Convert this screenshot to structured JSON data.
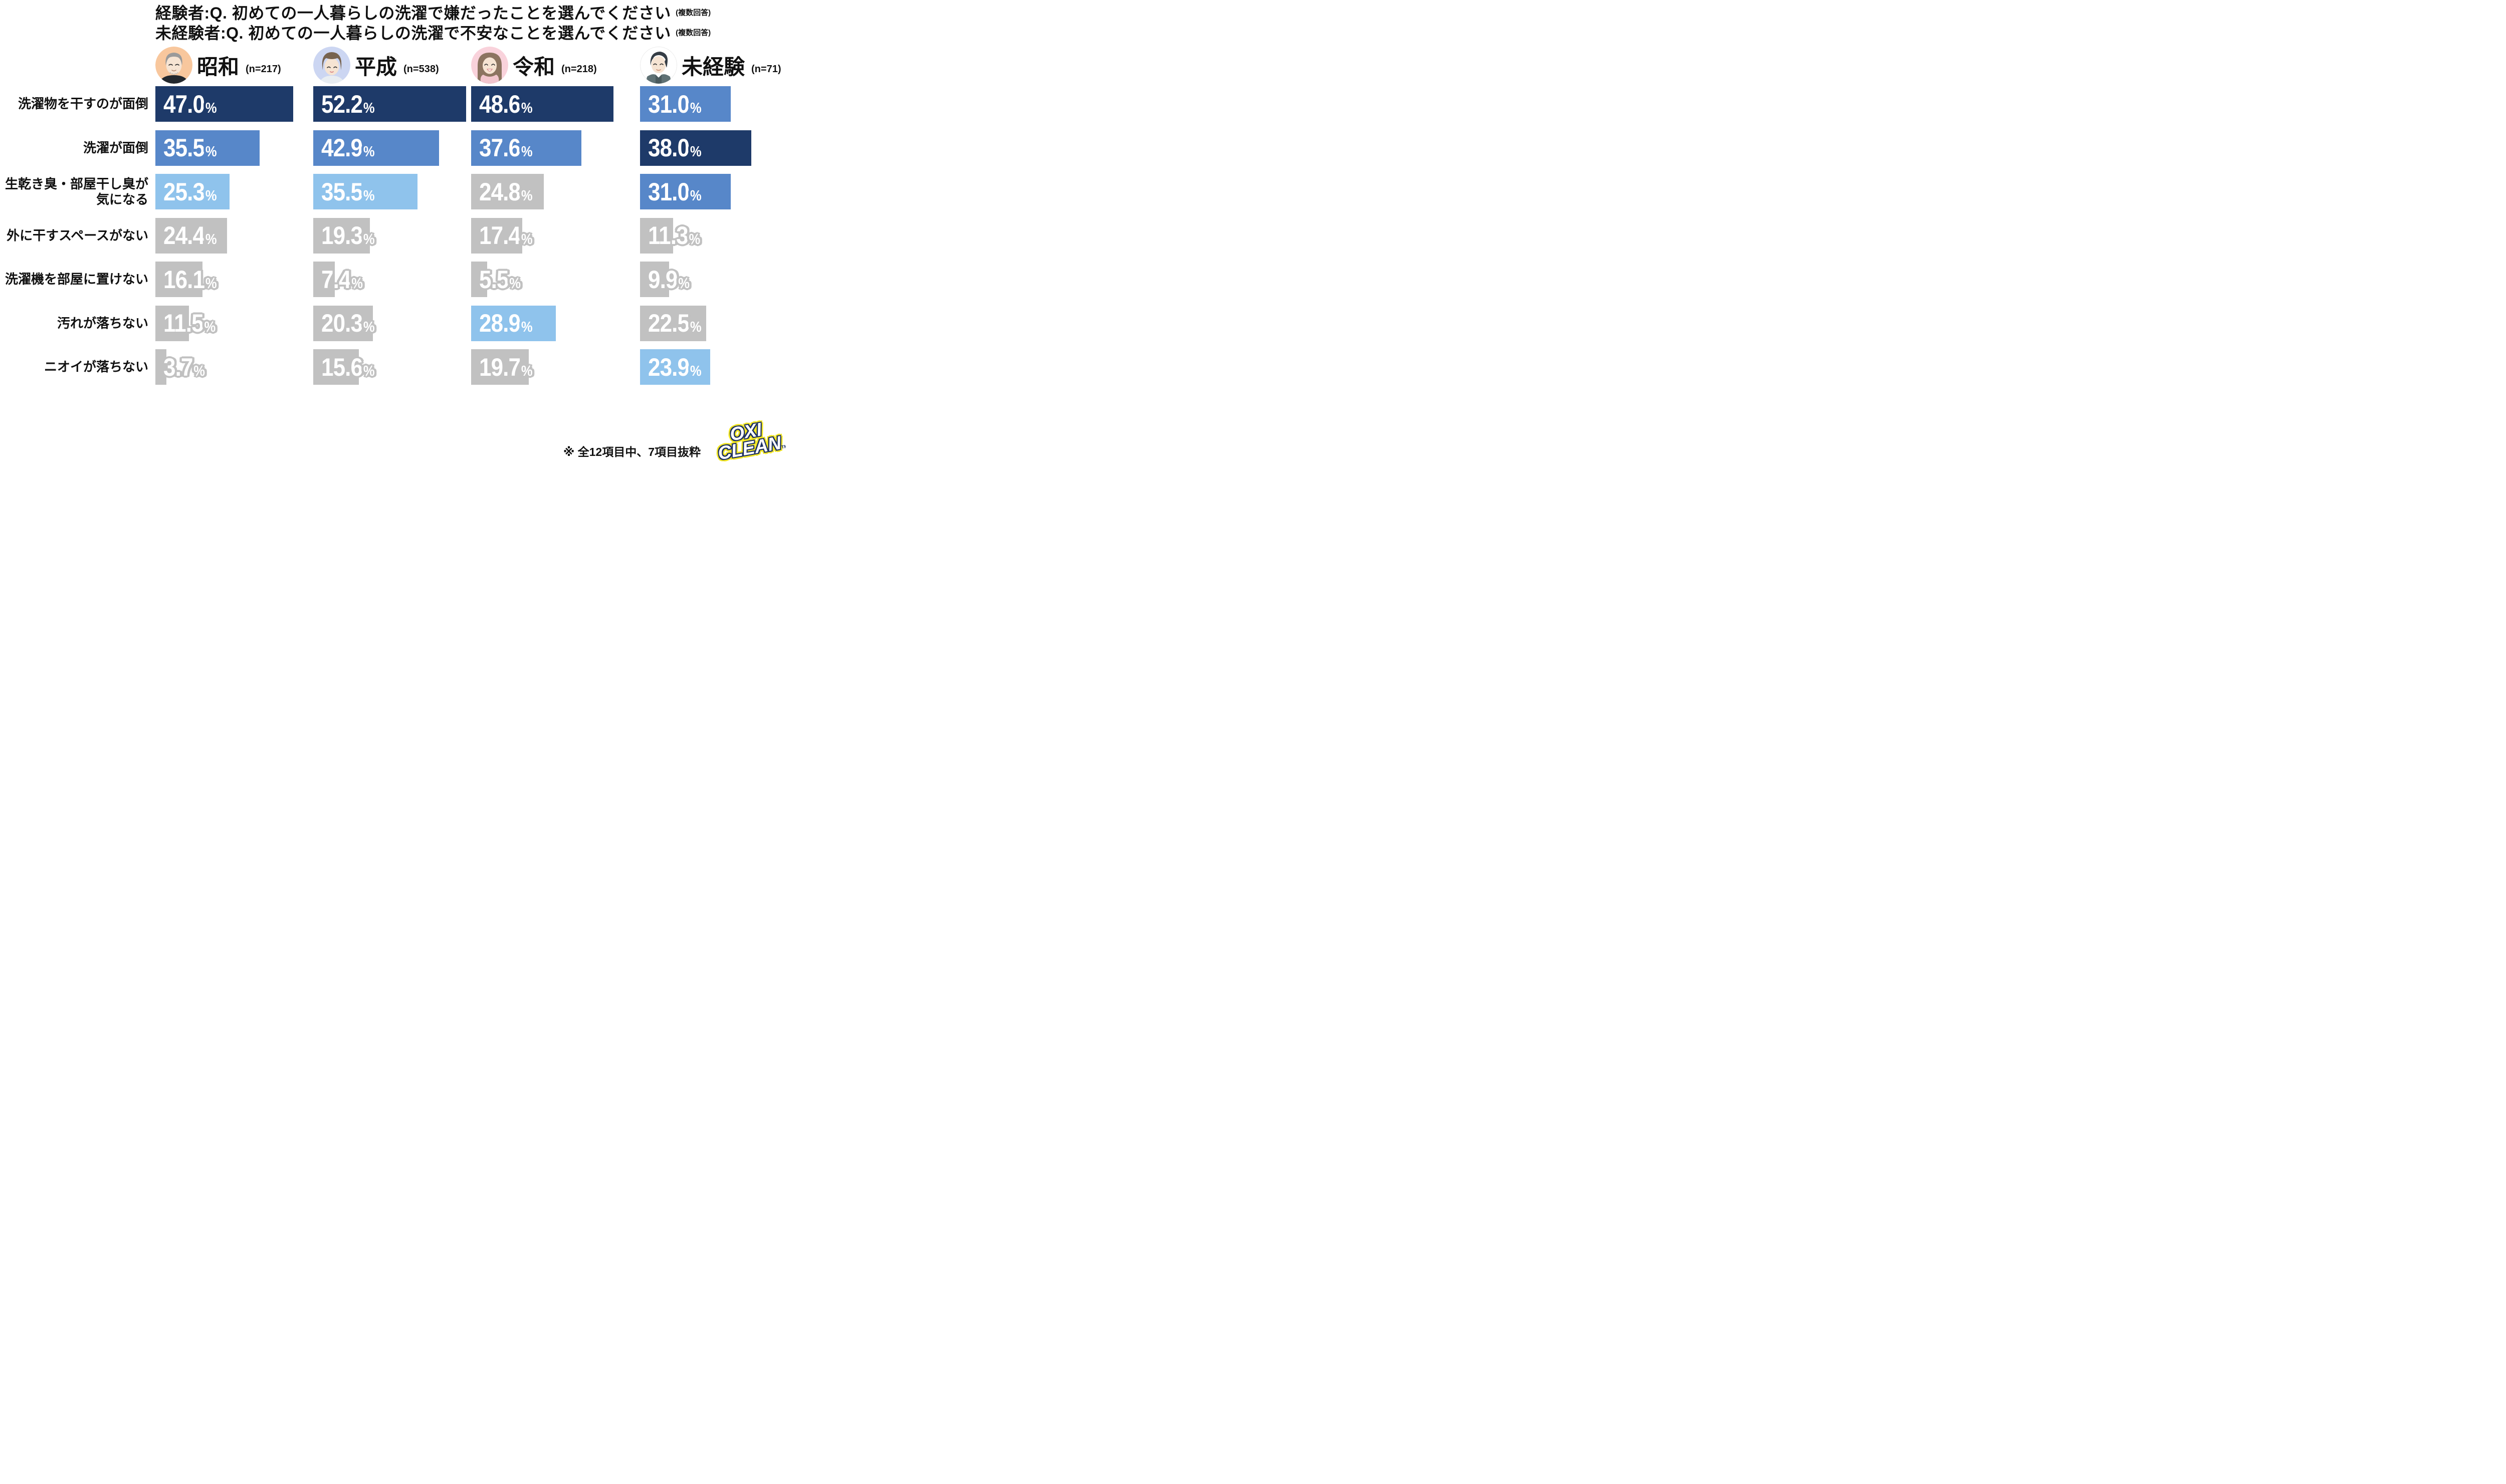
{
  "title": {
    "line1": "経験者:Q. 初めての一人暮らしの洗濯で嫌だったことを選んでください",
    "line1_note": "(複数回答)",
    "line2": "未経験者:Q. 初めての一人暮らしの洗濯で不安なことを選んでください",
    "line2_note": "(複数回答)"
  },
  "groups": [
    {
      "label": "昭和",
      "n_label": "(n=217)",
      "avatar": "showa-older-man",
      "avatar_bg": "#f8c79d"
    },
    {
      "label": "平成",
      "n_label": "(n=538)",
      "avatar": "heisei-person",
      "avatar_bg": "#ccd6f2"
    },
    {
      "label": "令和",
      "n_label": "(n=218)",
      "avatar": "reiwa-woman",
      "avatar_bg": "#f9d2db"
    },
    {
      "label": "未経験",
      "n_label": "(n=71)",
      "avatar": "mikeiken-young-man",
      "avatar_bg": "#ffffff"
    }
  ],
  "chart_data": {
    "type": "bar",
    "orientation": "horizontal",
    "unit": "%",
    "title": "初めての一人暮らしの洗濯で嫌だったこと/不安なこと",
    "categories": [
      "洗濯物を干すのが面倒",
      "洗濯が面倒",
      "生乾き臭・部屋干し臭が\n気になる",
      "外に干すスペースがない",
      "洗濯機を部屋に置けない",
      "汚れが落ちない",
      "ニオイが落ちない"
    ],
    "series": [
      {
        "name": "昭和",
        "n": 217,
        "values": [
          47.0,
          35.5,
          25.3,
          24.4,
          16.1,
          11.5,
          3.7
        ]
      },
      {
        "name": "平成",
        "n": 538,
        "values": [
          52.2,
          42.9,
          35.5,
          19.3,
          7.4,
          20.3,
          15.6
        ]
      },
      {
        "name": "令和",
        "n": 218,
        "values": [
          48.6,
          37.6,
          24.8,
          17.4,
          5.5,
          28.9,
          19.7
        ]
      },
      {
        "name": "未経験",
        "n": 71,
        "values": [
          31.0,
          38.0,
          31.0,
          11.3,
          9.9,
          22.5,
          23.9
        ]
      }
    ],
    "cell_colors": [
      [
        "navy",
        "navy",
        "navy",
        "blue"
      ],
      [
        "blue",
        "blue",
        "blue",
        "navy"
      ],
      [
        "light",
        "light",
        "gray",
        "blue"
      ],
      [
        "gray",
        "gray",
        "gray",
        "gray"
      ],
      [
        "gray",
        "gray",
        "gray",
        "gray"
      ],
      [
        "gray",
        "gray",
        "light",
        "gray"
      ],
      [
        "gray",
        "gray",
        "gray",
        "light"
      ]
    ],
    "palette": {
      "navy": "#1e3a69",
      "blue": "#5787c9",
      "light": "#8fc3ec",
      "gray": "#c1c1c1"
    },
    "xlim": [
      0,
      55
    ],
    "grid": false,
    "value_labels": "inside-start, white bold, outlined in bar color"
  },
  "footnote": "※ 全12項目中、7項目抜粋",
  "logo": {
    "line1": "OXI",
    "line2": "CLEAN",
    "tm": "TM",
    "navy": "#1d3061",
    "yellow": "#f2e620"
  }
}
